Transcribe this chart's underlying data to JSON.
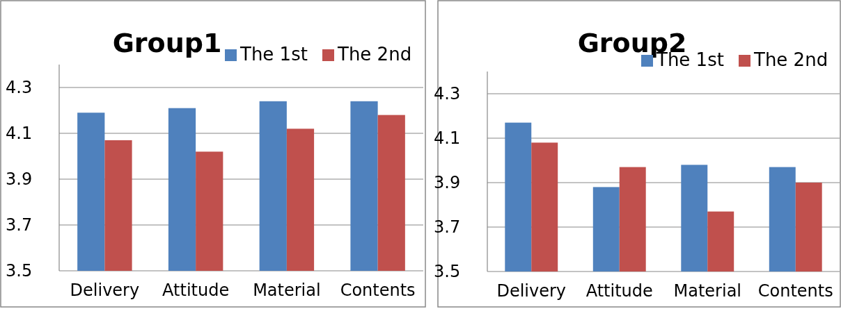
{
  "chart_data": [
    {
      "type": "bar",
      "title": "Group1",
      "categories": [
        "Delivery",
        "Attitude",
        "Material",
        "Contents"
      ],
      "series": [
        {
          "name": "The 1st",
          "color": "#4f81bd",
          "values": [
            4.19,
            4.21,
            4.24,
            4.24
          ]
        },
        {
          "name": "The 2nd",
          "color": "#c0504d",
          "values": [
            4.07,
            4.02,
            4.12,
            4.18
          ]
        }
      ],
      "ylim": [
        3.5,
        4.4
      ],
      "yticks": [
        3.5,
        3.7,
        3.9,
        4.1,
        4.3
      ],
      "grid": "y",
      "legend": "top right"
    },
    {
      "type": "bar",
      "title": "Group2",
      "categories": [
        "Delivery",
        "Attitude",
        "Material",
        "Contents"
      ],
      "series": [
        {
          "name": "The 1st",
          "color": "#4f81bd",
          "values": [
            4.17,
            3.88,
            3.98,
            3.97
          ]
        },
        {
          "name": "The 2nd",
          "color": "#c0504d",
          "values": [
            4.08,
            3.97,
            3.77,
            3.9
          ]
        }
      ],
      "ylim": [
        3.5,
        4.4
      ],
      "yticks": [
        3.5,
        3.7,
        3.9,
        4.1,
        4.3
      ],
      "grid": "y",
      "legend": "top right"
    }
  ]
}
